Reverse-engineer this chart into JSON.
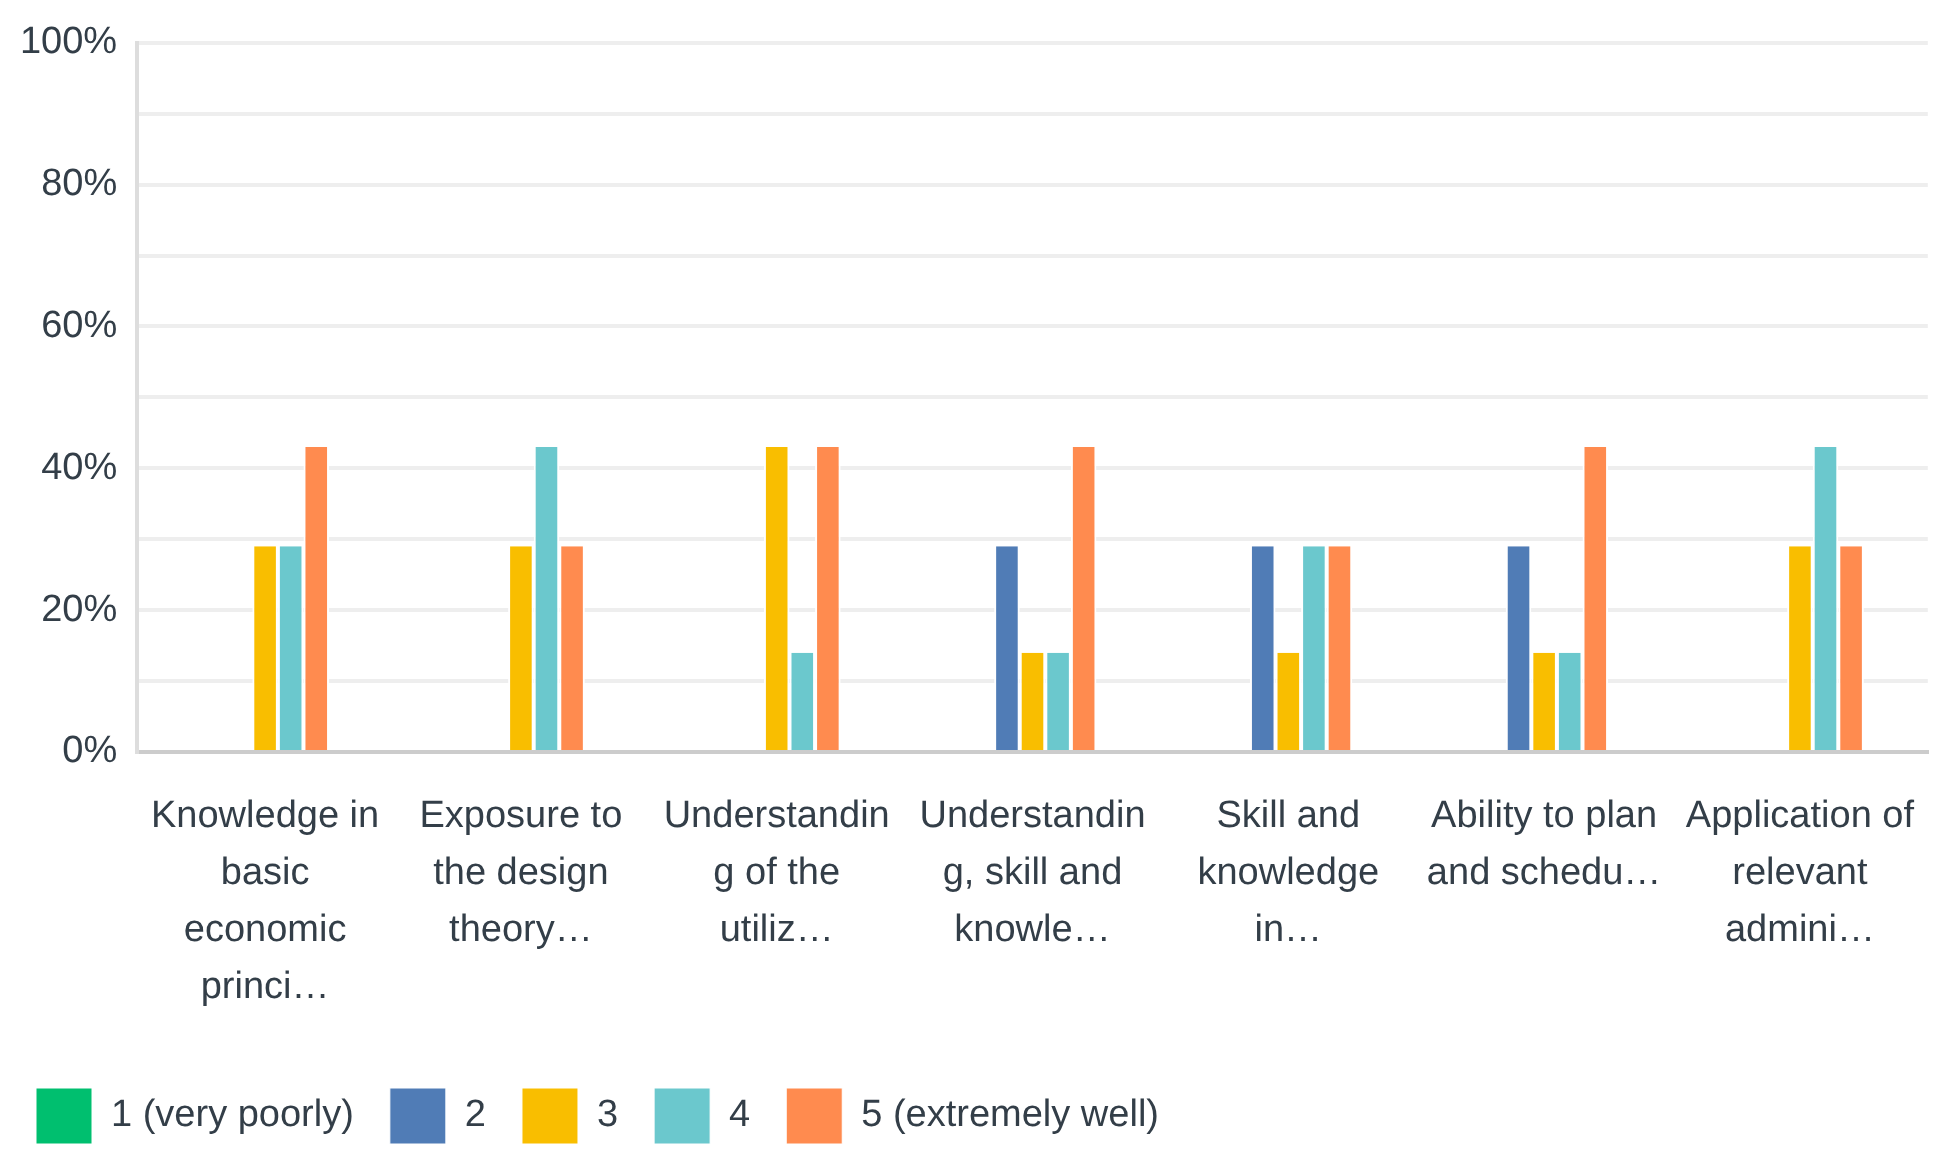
{
  "chart_data": {
    "type": "bar",
    "categories": [
      "Knowledge in basic economic princi…",
      "Exposure to the design theory…",
      "Understanding of the utiliz…",
      "Understanding, skill and knowle…",
      "Skill and knowledge in…",
      "Ability to plan and schedu…",
      "Application of relevant admini…"
    ],
    "series": [
      {
        "name": "1 (very poorly)",
        "color": "#00bf6f",
        "values": [
          0,
          0,
          0,
          0,
          0,
          0,
          0
        ]
      },
      {
        "name": "2",
        "color": "#507cb6",
        "values": [
          0,
          0,
          0,
          29,
          29,
          29,
          0
        ]
      },
      {
        "name": "3",
        "color": "#f9be00",
        "values": [
          29,
          29,
          43,
          14,
          14,
          14,
          29
        ]
      },
      {
        "name": "4",
        "color": "#6bc8cd",
        "values": [
          29,
          43,
          14,
          14,
          29,
          14,
          43
        ]
      },
      {
        "name": "5 (extremely well)",
        "color": "#ff8b4f",
        "values": [
          43,
          29,
          43,
          43,
          29,
          43,
          29
        ]
      }
    ],
    "ylim": [
      0,
      100
    ],
    "yticks": [
      {
        "value": 0,
        "label": "0%"
      },
      {
        "value": 10,
        "label": null
      },
      {
        "value": 20,
        "label": "20%"
      },
      {
        "value": 30,
        "label": null
      },
      {
        "value": 40,
        "label": "40%"
      },
      {
        "value": 50,
        "label": null
      },
      {
        "value": 60,
        "label": "60%"
      },
      {
        "value": 70,
        "label": null
      },
      {
        "value": 80,
        "label": "80%"
      },
      {
        "value": 90,
        "label": null
      },
      {
        "value": 100,
        "label": "100%"
      }
    ],
    "grid": "y",
    "legend": "bottom"
  }
}
